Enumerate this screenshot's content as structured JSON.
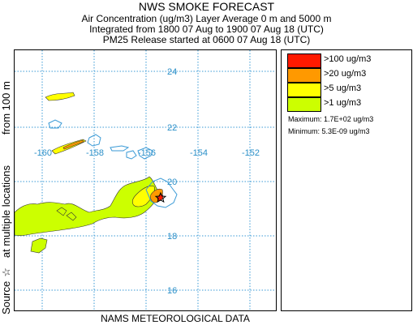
{
  "header": {
    "title": "NWS SMOKE FORECAST",
    "line1": "Air Concentration (ug/m3) Layer Average    0 m and  5000 m",
    "line2": "Integrated from 1800 07 Aug to 1900 07 Aug 18 (UTC)",
    "line3": "PM25 Release started at 0600 07 Aug 18 (UTC)"
  },
  "side_label": {
    "source": "Source",
    "star": "☆",
    "locations": "at multiple locations",
    "height": "from   100 m"
  },
  "footer": "NAMS METEOROLOGICAL DATA",
  "map": {
    "latitude_labels": [
      "24",
      "22",
      "20",
      "18",
      "16"
    ],
    "longitude_labels": [
      "-160",
      "-158",
      "-156",
      "-154",
      "-152"
    ],
    "grid_color": "#3a9ad6",
    "coast_color": "#3a9ad6"
  },
  "legend": {
    "items": [
      {
        "label": ">100 ug/m3",
        "color": "#ff1a00"
      },
      {
        "label": ">20 ug/m3",
        "color": "#ff9900"
      },
      {
        "label": ">5 ug/m3",
        "color": "#ffff00"
      },
      {
        "label": ">1 ug/m3",
        "color": "#ccff00"
      }
    ],
    "maximum": "Maximum:  1.7E+02 ug/m3",
    "minimum": "Minimum:  5.3E-09 ug/m3"
  }
}
